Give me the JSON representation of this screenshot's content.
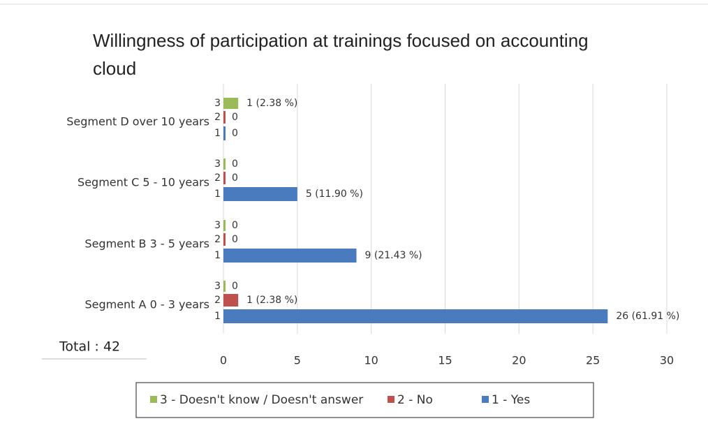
{
  "chart_data": {
    "type": "barh",
    "title": "Willingness of participation at trainings focused on accounting cloud",
    "categories": [
      "Segment A 0 - 3 years",
      "Segment B 3 - 5 years",
      "Segment C 5 - 10 years",
      "Segment D over 10 years"
    ],
    "bar_labels": [
      "1",
      "2",
      "3"
    ],
    "series": [
      {
        "name": "1 - Yes",
        "color": "#4a7bbf",
        "values": [
          26,
          9,
          5,
          0
        ],
        "value_labels": [
          "26 (61.91 %)",
          "9 (21.43 %)",
          "5 (11.90 %)",
          "0"
        ]
      },
      {
        "name": "2 - No",
        "color": "#c0504d",
        "values": [
          1,
          0,
          0,
          0
        ],
        "value_labels": [
          "1 (2.38 %)",
          "0",
          "0",
          "0"
        ]
      },
      {
        "name": "3 - Doesn't know / Doesn't answer",
        "color": "#9bbb59",
        "values": [
          0,
          0,
          0,
          1
        ],
        "value_labels": [
          "0",
          "0",
          "0",
          "1 (2.38 %)"
        ]
      }
    ],
    "xlim": [
      0,
      30
    ],
    "xticks": [
      0,
      5,
      10,
      15,
      20,
      25,
      30
    ],
    "grid": true,
    "annotation": "Total : 42",
    "legend": "bottom"
  }
}
